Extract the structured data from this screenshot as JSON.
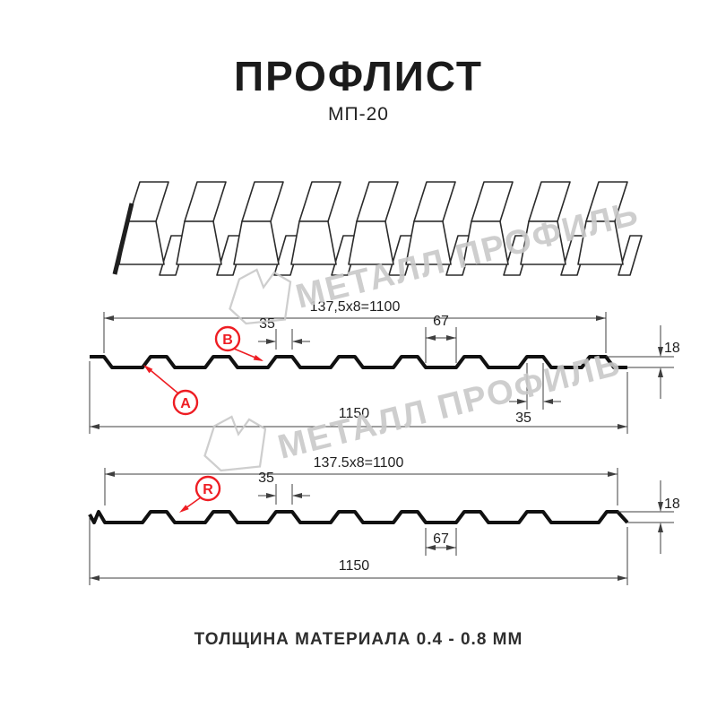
{
  "header": {
    "title": "ПРОФЛИСТ",
    "subtitle": "МП-20"
  },
  "footer": {
    "text": "ТОЛЩИНА МАТЕРИАЛА 0.4 - 0.8 ММ"
  },
  "watermark": {
    "brand_text": "МЕТАЛЛ ПРОФИЛЬ",
    "logo": "metall-profil-polygon-logo",
    "color": "#c9c9c9"
  },
  "colors": {
    "accent_red": "#ee1d23",
    "profile_line": "#111111",
    "dimension_line": "#3f3f3f",
    "sketch_line": "#2b2b2b",
    "background": "#ffffff"
  },
  "section_top": {
    "dim_pitch": "137,5x8=1100",
    "dim_crest": "35",
    "dim_valley": "67",
    "dim_height": "18",
    "dim_bottom_flat": "35",
    "dim_total": "1150",
    "callout_a": "A",
    "callout_b": "B"
  },
  "section_bottom": {
    "dim_pitch": "137.5x8=1100",
    "dim_crest": "35",
    "dim_valley": "67",
    "dim_height": "18",
    "dim_total": "1150",
    "callout_r": "R"
  }
}
